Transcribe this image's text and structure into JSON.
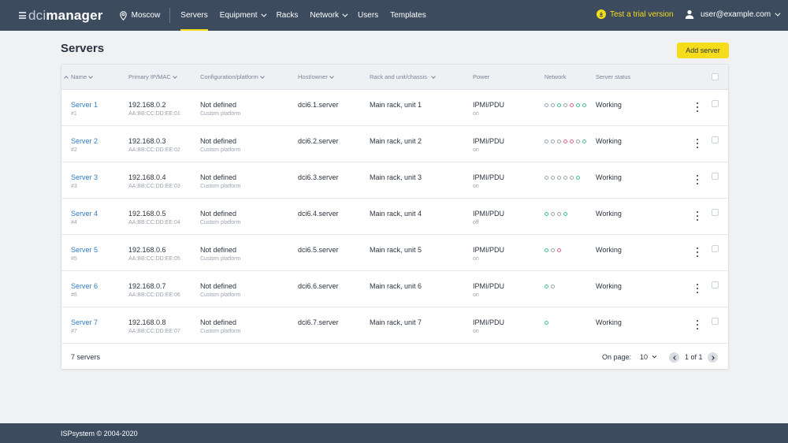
{
  "app": {
    "logo_light": "dci",
    "logo_bold": "manager"
  },
  "header": {
    "location": "Moscow",
    "nav": [
      {
        "label": "Servers",
        "active": true,
        "dropdown": false
      },
      {
        "label": "Equipment",
        "active": false,
        "dropdown": true
      },
      {
        "label": "Racks",
        "active": false,
        "dropdown": false
      },
      {
        "label": "Network",
        "active": false,
        "dropdown": true
      },
      {
        "label": "Users",
        "active": false,
        "dropdown": false
      },
      {
        "label": "Templates",
        "active": false,
        "dropdown": false
      }
    ],
    "trial_label": "Test a trial version",
    "user_email": "user@example.com"
  },
  "page": {
    "title": "Servers",
    "add_button": "Add server"
  },
  "table": {
    "columns": {
      "name": "Name",
      "ip": "Primary IP/MAC",
      "config": "Configuration/platform",
      "host": "Host/owner",
      "rack": "Rack and unit/chassis",
      "power": "Power",
      "network": "Network",
      "status": "Server status"
    },
    "rows": [
      {
        "name": "Server 1",
        "id": "#1",
        "ip": "192.168.0.2",
        "mac": "AA:BB:CC:DD:EE:01",
        "config": "Not defined",
        "platform": "Custom platform",
        "host": "dci6.1.server",
        "rack": "Main rack, unit 1",
        "power": "IPMI/PDU",
        "power_state": "on",
        "network": [
          "gray",
          "gray",
          "green",
          "gray",
          "pink",
          "green",
          "green"
        ],
        "status": "Working"
      },
      {
        "name": "Server 2",
        "id": "#2",
        "ip": "192.168.0.3",
        "mac": "AA:BB:CC:DD:EE:02",
        "config": "Not defined",
        "platform": "Custom platform",
        "host": "dci6.2.server",
        "rack": "Main rack, unit 2",
        "power": "IPMI/PDU",
        "power_state": "on",
        "network": [
          "gray",
          "gray",
          "gray",
          "pink",
          "pink",
          "gray",
          "green"
        ],
        "status": "Working"
      },
      {
        "name": "Server 3",
        "id": "#3",
        "ip": "192.168.0.4",
        "mac": "AA:BB:CC:DD:EE:03",
        "config": "Not defined",
        "platform": "Custom platform",
        "host": "dci6.3.server",
        "rack": "Main rack, unit 3",
        "power": "IPMI/PDU",
        "power_state": "on",
        "network": [
          "gray",
          "gray",
          "gray",
          "gray",
          "gray",
          "green"
        ],
        "status": "Working"
      },
      {
        "name": "Server 4",
        "id": "#4",
        "ip": "192.168.0.5",
        "mac": "AA:BB:CC:DD:EE:04",
        "config": "Not defined",
        "platform": "Custom platform",
        "host": "dci6.4.server",
        "rack": "Main rack, unit 4",
        "power": "IPMI/PDU",
        "power_state": "off",
        "network": [
          "green",
          "gray",
          "gray",
          "green"
        ],
        "status": "Working"
      },
      {
        "name": "Server 5",
        "id": "#5",
        "ip": "192.168.0.6",
        "mac": "AA:BB:CC:DD:EE:05",
        "config": "Not defined",
        "platform": "Custom platform",
        "host": "dci6.5.server",
        "rack": "Main rack, unit 5",
        "power": "IPMI/PDU",
        "power_state": "on",
        "network": [
          "green",
          "gray",
          "pink"
        ],
        "status": "Working"
      },
      {
        "name": "Server 6",
        "id": "#6",
        "ip": "192.168.0.7",
        "mac": "AA:BB:CC:DD:EE:06",
        "config": "Not defined",
        "platform": "Custom platform",
        "host": "dci6.6.server",
        "rack": "Main rack, unit 6",
        "power": "IPMI/PDU",
        "power_state": "on",
        "network": [
          "green",
          "gray"
        ],
        "status": "Working"
      },
      {
        "name": "Server 7",
        "id": "#7",
        "ip": "192.168.0.8",
        "mac": "AA:BB:CC:DD:EE:07",
        "config": "Not defined",
        "platform": "Custom platform",
        "host": "dci6.7.server",
        "rack": "Main rack, unit 7",
        "power": "IPMI/PDU",
        "power_state": "on",
        "network": [
          "green"
        ],
        "status": "Working"
      }
    ],
    "footer": {
      "count": "7 servers",
      "on_page_label": "On page:",
      "per_page": "10",
      "page_text": "1 of 1"
    }
  },
  "footer": {
    "copyright": "ISPsystem © 2004-2020"
  },
  "colors": {
    "header_bg": "#3c4b5e",
    "accent": "#f5dd1c",
    "link": "#2f7cc1",
    "net_green": "#3fbf8f",
    "net_pink": "#e0608a",
    "net_gray": "#9aa3ae"
  }
}
